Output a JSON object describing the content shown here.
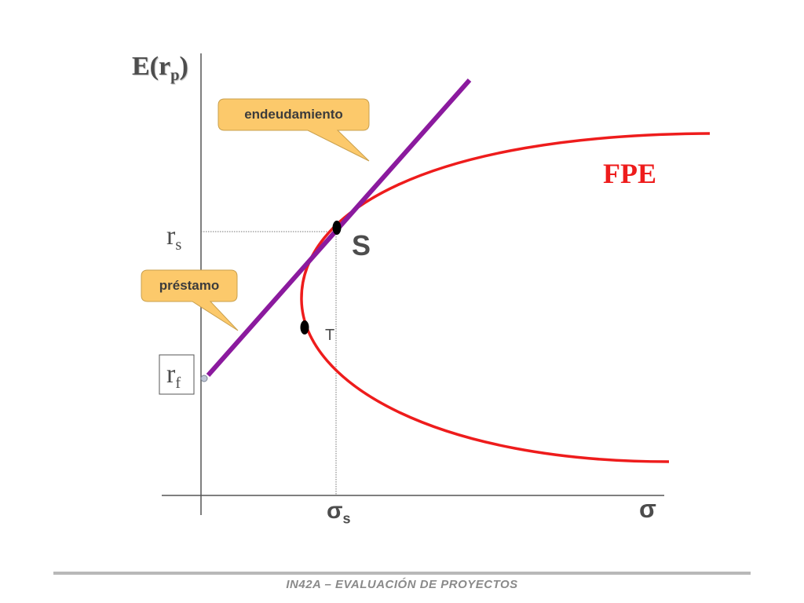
{
  "axes": {
    "y_label": "E(r",
    "y_label_sub": "p",
    "y_label_close": ")",
    "x_label": "σ"
  },
  "ticks": {
    "rs_main": "r",
    "rs_sub": "s",
    "rf_main": "r",
    "rf_sub": "f",
    "sigma_s_main": "σ",
    "sigma_s_sub": "s"
  },
  "points": {
    "S": "S",
    "T": "T"
  },
  "curve_label": "FPE",
  "callouts": {
    "borrowing": "endeudamiento",
    "lending": "préstamo"
  },
  "colors": {
    "frontier": "#ee1c1c",
    "cml": "#8b1a9e",
    "callout_fill": "#fcc96b",
    "axis": "#555555"
  },
  "footer": "IN42A – EVALUACIÓN DE PROYECTOS"
}
